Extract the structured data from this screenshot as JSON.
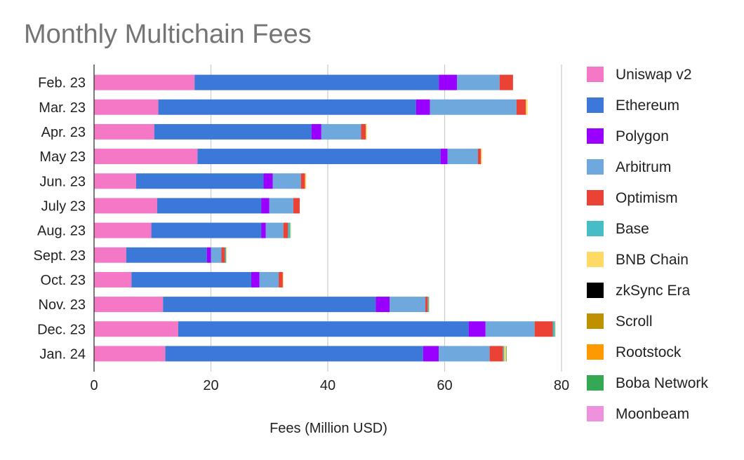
{
  "chart_data": {
    "type": "bar",
    "orientation": "horizontal",
    "stacked": true,
    "title": "Monthly Multichain Fees",
    "xlabel": "Fees (Million USD)",
    "ylabel": "",
    "xlim": [
      0,
      80
    ],
    "xticks": [
      0,
      20,
      40,
      60,
      80
    ],
    "grid": true,
    "legend_position": "right",
    "categories": [
      "Feb. 23",
      "Mar. 23",
      "Apr. 23",
      "May 23",
      "Jun. 23",
      "July 23",
      "Aug. 23",
      "Sept. 23",
      "Oct. 23",
      "Nov. 23",
      "Dec. 23",
      "Jan. 24"
    ],
    "series": [
      {
        "name": "Uniswap v2",
        "color": "#f478c6",
        "values": [
          17.2,
          11.0,
          10.3,
          17.7,
          7.2,
          10.8,
          9.8,
          5.5,
          6.4,
          11.8,
          14.4,
          12.2
        ]
      },
      {
        "name": "Ethereum",
        "color": "#3c78d8",
        "values": [
          41.8,
          44.1,
          26.9,
          41.6,
          21.8,
          17.8,
          18.8,
          13.8,
          20.5,
          36.4,
          49.7,
          44.1
        ]
      },
      {
        "name": "Polygon",
        "color": "#9900ff",
        "values": [
          3.1,
          2.4,
          1.7,
          1.2,
          1.6,
          1.4,
          0.8,
          0.7,
          1.4,
          2.4,
          2.9,
          2.7
        ]
      },
      {
        "name": "Arbitrum",
        "color": "#6fa8dc",
        "values": [
          7.3,
          14.8,
          6.8,
          5.2,
          4.8,
          4.1,
          3.0,
          1.8,
          3.3,
          6.1,
          8.4,
          8.7
        ]
      },
      {
        "name": "Optimism",
        "color": "#ea4335",
        "values": [
          2.3,
          1.6,
          0.8,
          0.5,
          0.7,
          1.1,
          0.8,
          0.6,
          0.7,
          0.4,
          3.1,
          2.3
        ]
      },
      {
        "name": "Base",
        "color": "#46bdc6",
        "values": [
          0,
          0,
          0,
          0,
          0,
          0,
          0.4,
          0.2,
          0,
          0.2,
          0.4,
          0.2
        ]
      },
      {
        "name": "BNB Chain",
        "color": "#ffd966",
        "values": [
          0,
          0.3,
          0.2,
          0.2,
          0.2,
          0,
          0.1,
          0.1,
          0.1,
          0.1,
          0.1,
          0.3
        ]
      },
      {
        "name": "zkSync Era",
        "color": "#000000",
        "values": [
          0,
          0,
          0,
          0,
          0,
          0,
          0,
          0,
          0,
          0,
          0,
          0
        ]
      },
      {
        "name": "Scroll",
        "color": "#bf9000",
        "values": [
          0,
          0,
          0,
          0,
          0,
          0,
          0,
          0,
          0,
          0,
          0,
          0
        ]
      },
      {
        "name": "Rootstock",
        "color": "#ff9900",
        "values": [
          0,
          0,
          0,
          0,
          0,
          0,
          0,
          0,
          0,
          0,
          0,
          0
        ]
      },
      {
        "name": "Boba Network",
        "color": "#34a853",
        "values": [
          0,
          0,
          0,
          0,
          0,
          0,
          0,
          0,
          0,
          0,
          0,
          0.1
        ]
      },
      {
        "name": "Moonbeam",
        "color": "#ee92de",
        "values": [
          0,
          0,
          0,
          0,
          0,
          0,
          0,
          0,
          0,
          0,
          0,
          0
        ]
      }
    ]
  }
}
